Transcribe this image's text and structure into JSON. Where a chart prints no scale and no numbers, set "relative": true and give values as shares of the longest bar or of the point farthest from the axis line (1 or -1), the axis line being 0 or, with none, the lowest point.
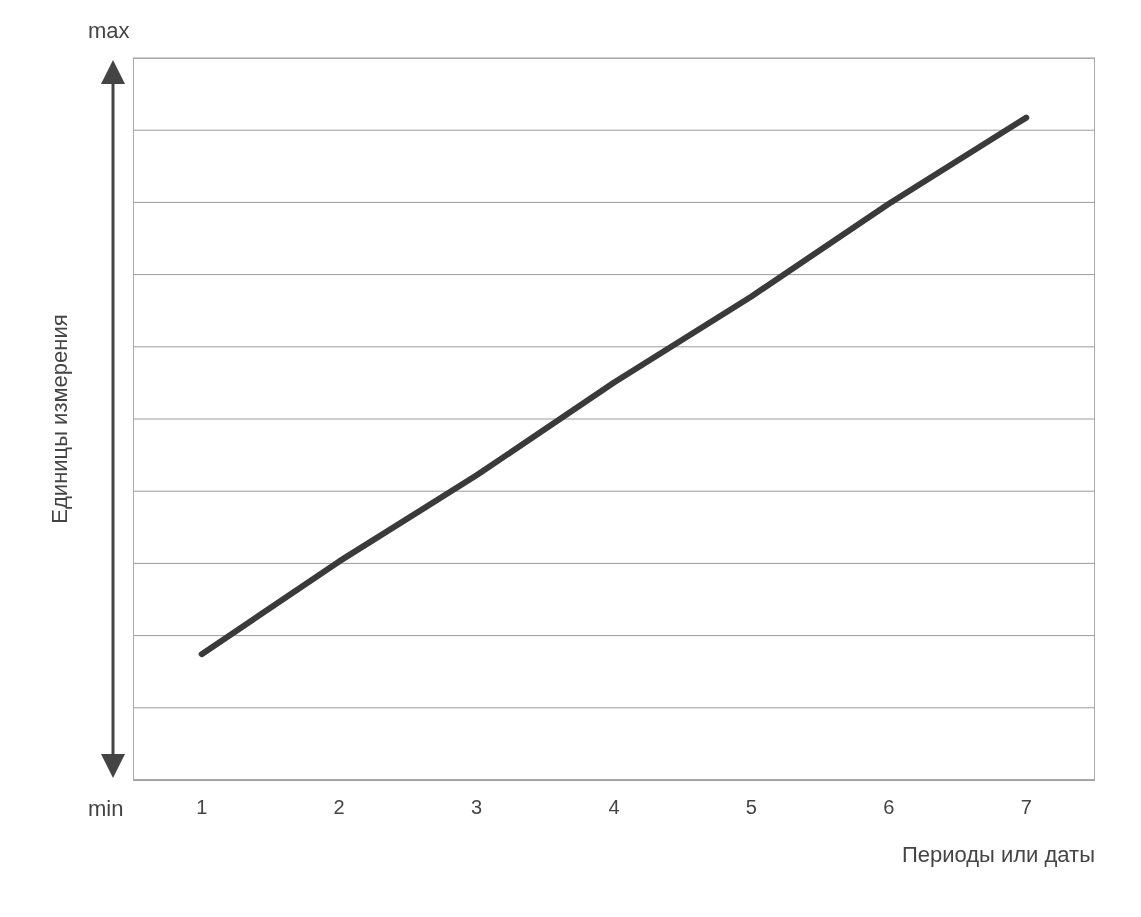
{
  "chart_data": {
    "type": "line",
    "xlabel": "Периоды или даты",
    "ylabel": "Единицы измерения",
    "categories": [
      "1",
      "2",
      "3",
      "4",
      "5",
      "6",
      "7"
    ],
    "series": [
      {
        "color": "#3a3a3a",
        "values": [
          0.19,
          0.33,
          0.46,
          0.6,
          0.73,
          0.87,
          1
        ]
      }
    ],
    "relative": true,
    "grid": "y",
    "line_style": "solid",
    "annotations": [
      "max",
      "min"
    ]
  }
}
